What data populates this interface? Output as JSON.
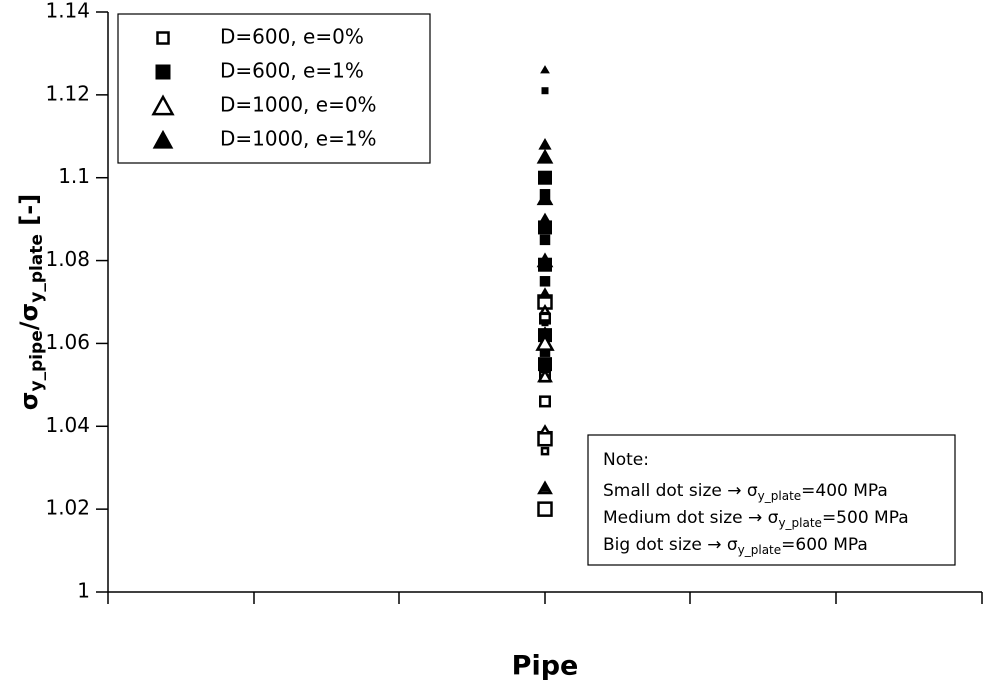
{
  "chart_data": {
    "type": "scatter",
    "xlabel": "Pipe",
    "ylabel_parts": [
      {
        "text": "σ"
      },
      {
        "text": "y_pipe",
        "sub": true
      },
      {
        "text": "/σ"
      },
      {
        "text": "y_plate",
        "sub": true
      },
      {
        "text": " [-]"
      }
    ],
    "ylim": [
      1,
      1.14
    ],
    "yticks": [
      1,
      1.02,
      1.04,
      1.06,
      1.08,
      1.1,
      1.12,
      1.14
    ],
    "legend": "upper left",
    "series": [
      {
        "name": "D=600, e=0%",
        "marker": "square",
        "filled": false,
        "color": "#000000",
        "values": [
          1.02,
          1.034,
          1.037,
          1.046,
          1.052,
          1.058,
          1.066,
          1.07
        ],
        "sizes": [
          600,
          400,
          600,
          500,
          500,
          400,
          500,
          600
        ]
      },
      {
        "name": "D=600, e=1%",
        "marker": "square",
        "filled": true,
        "color": "#000000",
        "values": [
          1.121,
          1.1,
          1.096,
          1.088,
          1.085,
          1.079,
          1.075,
          1.065,
          1.062,
          1.058,
          1.055
        ],
        "sizes": [
          400,
          600,
          500,
          600,
          500,
          600,
          500,
          400,
          600,
          500,
          600
        ]
      },
      {
        "name": "D=1000, e=0%",
        "marker": "triangle",
        "filled": false,
        "color": "#000000",
        "values": [
          1.025,
          1.039,
          1.052,
          1.06,
          1.068
        ],
        "sizes": [
          500,
          400,
          500,
          600,
          400
        ]
      },
      {
        "name": "D=1000, e=1%",
        "marker": "triangle",
        "filled": true,
        "color": "#000000",
        "values": [
          1.126,
          1.108,
          1.105,
          1.095,
          1.09,
          1.08,
          1.072,
          1.063,
          1.055,
          1.025
        ],
        "sizes": [
          400,
          500,
          600,
          600,
          500,
          600,
          500,
          400,
          500,
          400
        ]
      }
    ],
    "note": {
      "title": "Note:",
      "lines": [
        {
          "text": "Small dot size → σ",
          "sub": "y_plate",
          "rest": "=400 MPa"
        },
        {
          "text": "Medium dot size → σ",
          "sub": "y_plate",
          "rest": "=500 MPa"
        },
        {
          "text": "Big dot size → σ",
          "sub": "y_plate",
          "rest": "=600 MPa"
        }
      ]
    }
  }
}
